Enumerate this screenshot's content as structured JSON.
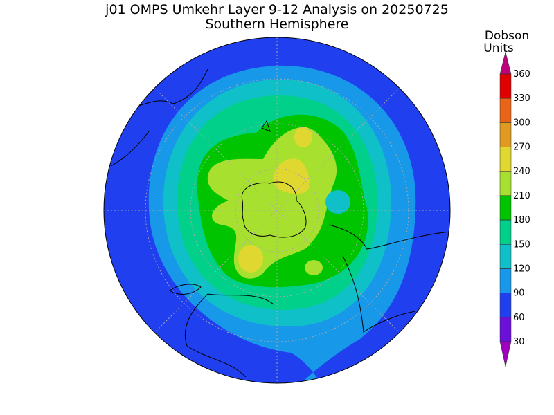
{
  "title": "j01 OMPS Umkehr Layer 9-12 Analysis on 20250725",
  "subtitle": "Southern Hemisphere",
  "colorbar": {
    "label": [
      "Dobson",
      "Units"
    ],
    "ticks": [
      360,
      330,
      300,
      270,
      240,
      210,
      180,
      150,
      120,
      90,
      60,
      30
    ],
    "colors": [
      "#c0007a",
      "#e00000",
      "#ea6418",
      "#e09a20",
      "#e0d830",
      "#a8e030",
      "#00c400",
      "#00d08a",
      "#10c0c8",
      "#1898e8",
      "#2040f0",
      "#6a10d8",
      "#a000c0"
    ]
  }
}
